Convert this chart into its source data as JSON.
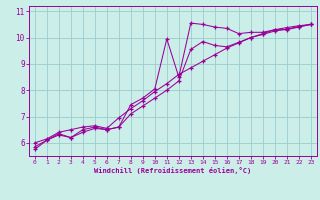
{
  "xlabel": "Windchill (Refroidissement éolien,°C)",
  "background_color": "#cceee8",
  "line_color": "#990099",
  "grid_color": "#99cccc",
  "xlim": [
    -0.5,
    23.5
  ],
  "ylim": [
    5.5,
    11.2
  ],
  "xticks": [
    0,
    1,
    2,
    3,
    4,
    5,
    6,
    7,
    8,
    9,
    10,
    11,
    12,
    13,
    14,
    15,
    16,
    17,
    18,
    19,
    20,
    21,
    22,
    23
  ],
  "yticks": [
    6,
    7,
    8,
    9,
    10,
    11
  ],
  "curve1_x": [
    0,
    1,
    2,
    3,
    4,
    5,
    6,
    7,
    8,
    9,
    10,
    11,
    12,
    13,
    14,
    15,
    16,
    17,
    18,
    19,
    20,
    21,
    22,
    23
  ],
  "curve1_y": [
    5.75,
    6.1,
    6.35,
    6.2,
    6.5,
    6.6,
    6.5,
    6.6,
    7.45,
    7.7,
    8.05,
    9.95,
    8.5,
    10.55,
    10.5,
    10.4,
    10.35,
    10.15,
    10.2,
    10.2,
    10.3,
    10.3,
    10.4,
    10.5
  ],
  "curve2_x": [
    0,
    1,
    2,
    3,
    4,
    5,
    6,
    7,
    8,
    9,
    10,
    11,
    12,
    13,
    14,
    15,
    16,
    17,
    18,
    19,
    20,
    21,
    22,
    23
  ],
  "curve2_y": [
    6.0,
    6.15,
    6.4,
    6.5,
    6.6,
    6.65,
    6.55,
    6.95,
    7.3,
    7.6,
    7.95,
    8.25,
    8.6,
    8.85,
    9.1,
    9.35,
    9.6,
    9.8,
    10.0,
    10.15,
    10.3,
    10.38,
    10.45,
    10.5
  ],
  "curve3_x": [
    0,
    1,
    2,
    3,
    4,
    5,
    6,
    7,
    8,
    9,
    10,
    11,
    12,
    13,
    14,
    15,
    16,
    17,
    18,
    19,
    20,
    21,
    22,
    23
  ],
  "curve3_y": [
    5.85,
    6.1,
    6.3,
    6.2,
    6.4,
    6.55,
    6.5,
    6.6,
    7.1,
    7.4,
    7.7,
    8.0,
    8.35,
    9.55,
    9.85,
    9.7,
    9.65,
    9.82,
    10.0,
    10.12,
    10.25,
    10.32,
    10.42,
    10.5
  ]
}
